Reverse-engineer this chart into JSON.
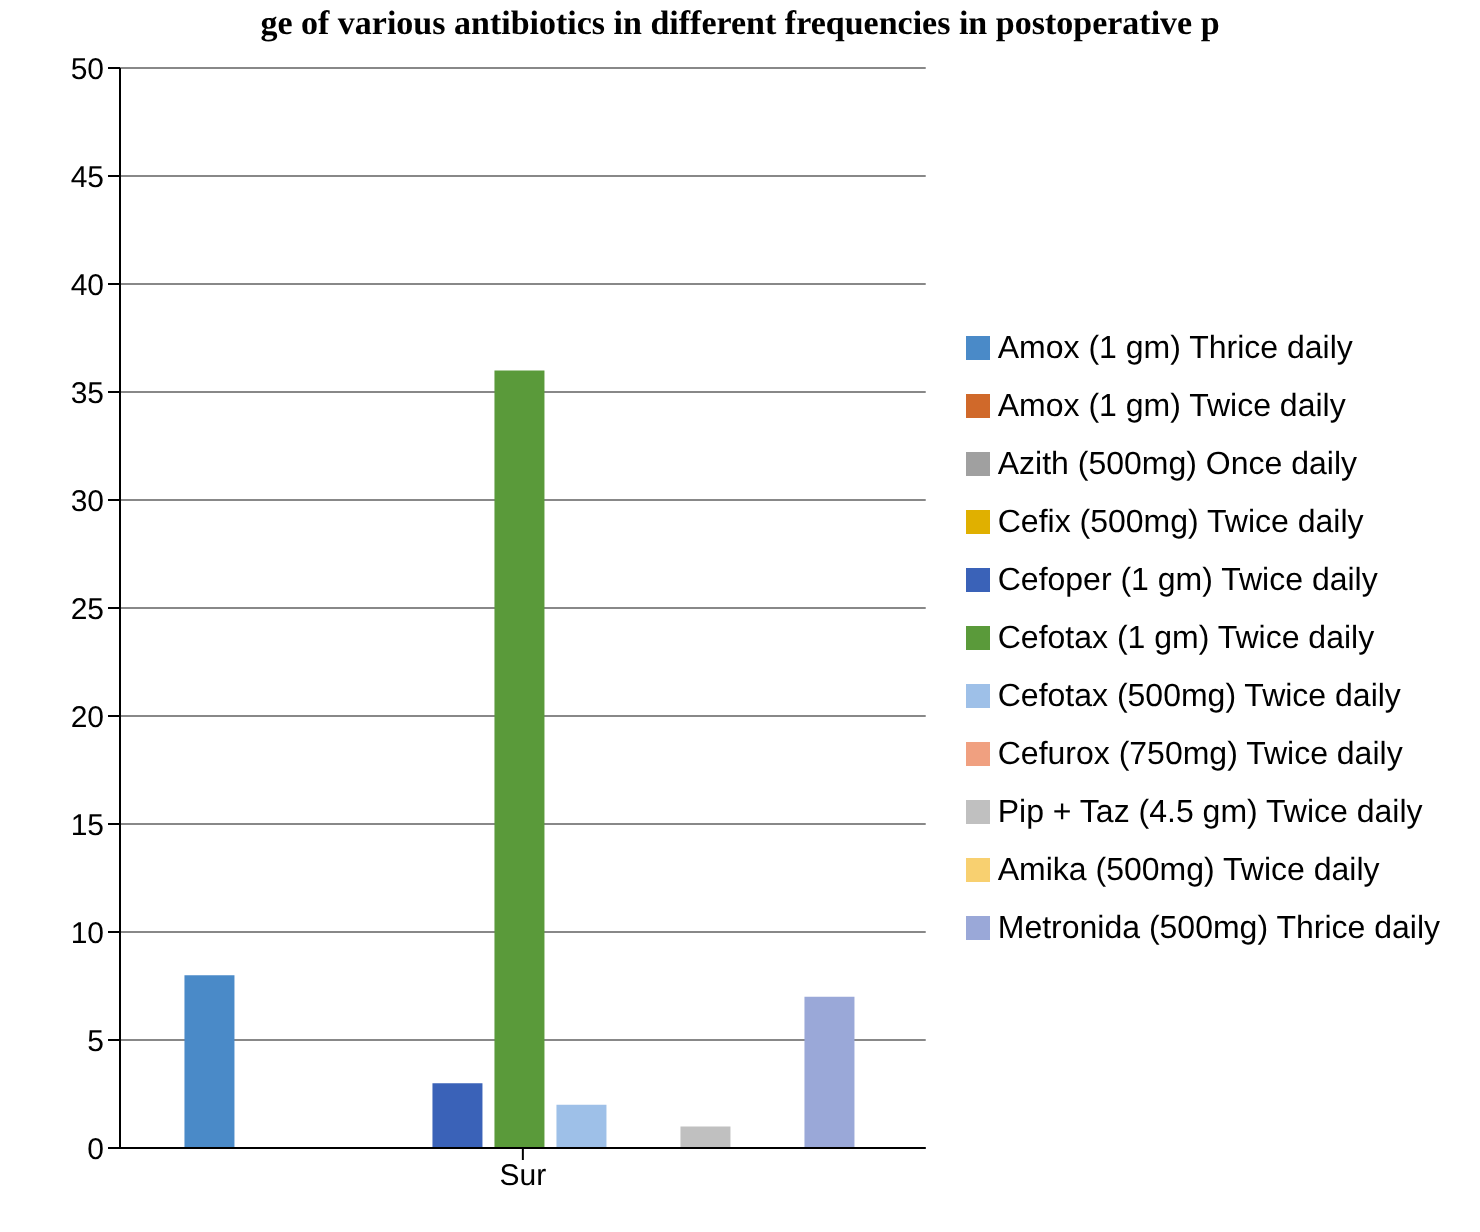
{
  "chart_data": {
    "type": "bar",
    "title": "ge of various antibiotics in different frequencies in postoperative p",
    "categories": [
      "Sur"
    ],
    "series": [
      {
        "name": "Amox (1 gm) Thrice daily",
        "color": "#4a8ac8",
        "values": [
          8
        ]
      },
      {
        "name": "Amox (1 gm) Twice daily",
        "color": "#d0692a",
        "values": [
          0
        ]
      },
      {
        "name": "Azith (500mg) Once daily",
        "color": "#a0a0a0",
        "values": [
          0
        ]
      },
      {
        "name": "Cefix (500mg) Twice daily",
        "color": "#e0b000",
        "values": [
          0
        ]
      },
      {
        "name": "Cefoper (1 gm) Twice daily",
        "color": "#3a62b8",
        "values": [
          3
        ]
      },
      {
        "name": "Cefotax (1 gm) Twice daily",
        "color": "#5a9a3a",
        "values": [
          36
        ]
      },
      {
        "name": "Cefotax (500mg) Twice daily",
        "color": "#9ec0e8",
        "values": [
          2
        ]
      },
      {
        "name": "Cefurox (750mg) Twice daily",
        "color": "#f0a080",
        "values": [
          0
        ]
      },
      {
        "name": "Pip + Taz (4.5 gm) Twice daily",
        "color": "#c0c0c0",
        "values": [
          1
        ]
      },
      {
        "name": "Amika (500mg) Twice daily",
        "color": "#f8d070",
        "values": [
          0
        ]
      },
      {
        "name": "Metronida (500mg) Thrice daily",
        "color": "#9aa8d8",
        "values": [
          7
        ]
      }
    ],
    "ylim": [
      0,
      50
    ],
    "yticks": [
      0,
      5,
      10,
      15,
      20,
      25,
      30,
      35,
      40,
      45,
      50
    ],
    "grid": "y",
    "legend": "right"
  }
}
